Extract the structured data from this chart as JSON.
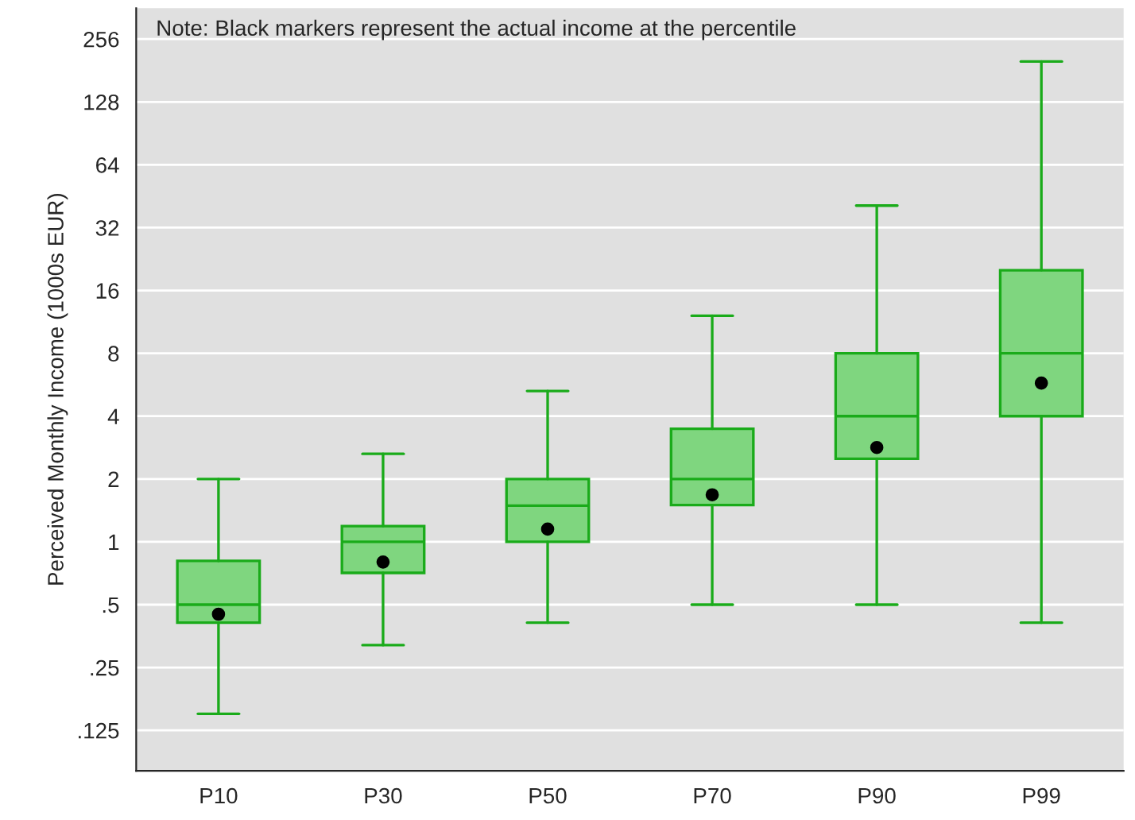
{
  "chart_data": {
    "type": "box",
    "ylabel": "Perceived Monthly Income (1000s EUR)",
    "annotations": [
      "Note: Black markers represent the actual income at the percentile"
    ],
    "categories": [
      "P10",
      "P30",
      "P50",
      "P70",
      "P90",
      "P99"
    ],
    "color": "#7fd67f",
    "boxes": [
      {
        "low": 0.15,
        "q1": 0.41,
        "median": 0.5,
        "q3": 0.81,
        "high": 2,
        "mean": 0.45
      },
      {
        "low": 0.32,
        "q1": 0.71,
        "median": 1,
        "q3": 1.19,
        "high": 2.64,
        "mean": 0.8
      },
      {
        "low": 0.41,
        "q1": 1,
        "median": 1.49,
        "q3": 2,
        "high": 5.28,
        "mean": 1.15
      },
      {
        "low": 0.5,
        "q1": 1.5,
        "median": 2,
        "q3": 3.48,
        "high": 12.1,
        "mean": 1.68
      },
      {
        "low": 0.5,
        "q1": 2.5,
        "median": 4,
        "q3": 8,
        "high": 40.8,
        "mean": 2.83
      },
      {
        "low": 0.41,
        "q1": 4,
        "median": 8,
        "q3": 20,
        "high": 200,
        "mean": 5.76
      }
    ],
    "log": "y",
    "ylim": [
      0.08,
      360
    ],
    "yticks": [
      {
        "value": 0.125,
        "label": ".125"
      },
      {
        "value": 0.25,
        "label": ".25"
      },
      {
        "value": 0.5,
        "label": ".5"
      },
      1,
      2,
      4,
      8,
      16,
      32,
      64,
      128,
      256
    ],
    "grid": "y",
    "marker": "circle"
  }
}
